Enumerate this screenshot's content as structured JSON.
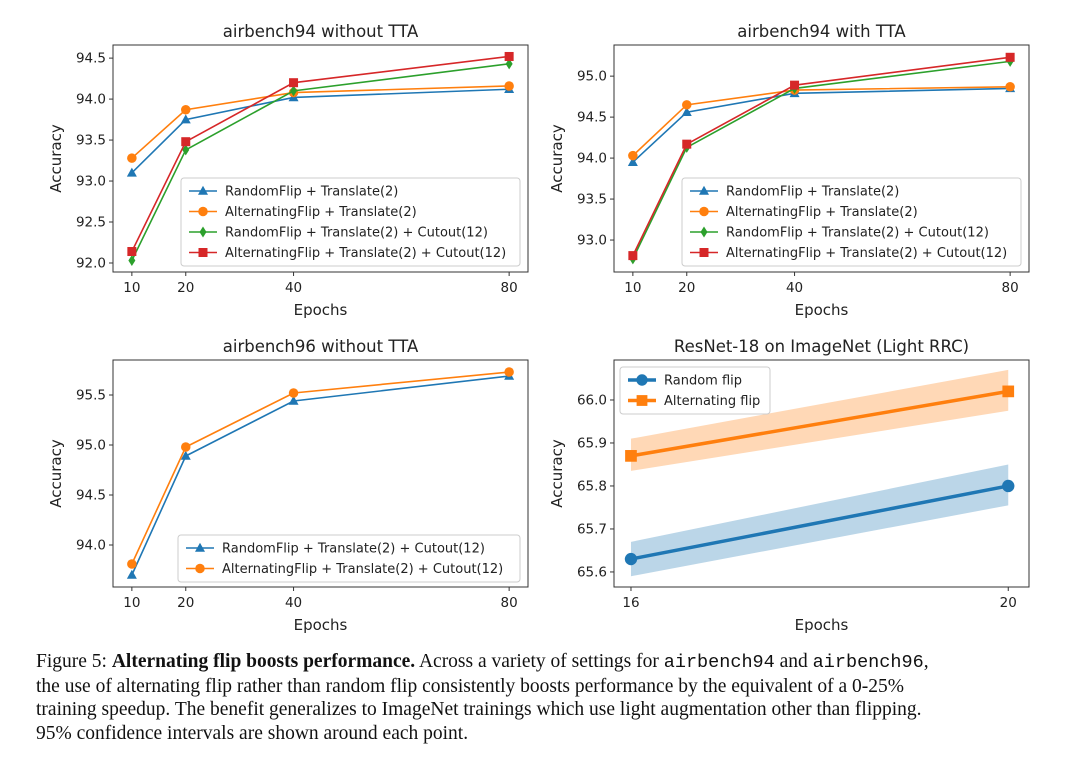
{
  "chart_data": [
    {
      "type": "line",
      "title": "airbench94 without TTA",
      "xlabel": "Epochs",
      "ylabel": "Accuracy",
      "x": [
        10,
        20,
        40,
        80
      ],
      "xticks": [
        "10",
        "20",
        "40",
        "80"
      ],
      "yticks": [
        92.0,
        92.5,
        93.0,
        93.5,
        94.0,
        94.5
      ],
      "ytick_labels": [
        "92.0",
        "92.5",
        "93.0",
        "93.5",
        "94.0",
        "94.5"
      ],
      "xlim": [
        6.5,
        83.5
      ],
      "ylim": [
        91.89,
        94.66
      ],
      "legend_position": "lower-right",
      "series": [
        {
          "name": "RandomFlip + Translate(2)",
          "color": "#1f77b4",
          "marker": "triangle",
          "values": [
            93.1,
            93.75,
            94.02,
            94.12
          ]
        },
        {
          "name": "AlternatingFlip + Translate(2)",
          "color": "#ff7f0e",
          "marker": "circle",
          "values": [
            93.28,
            93.87,
            94.08,
            94.16
          ]
        },
        {
          "name": "RandomFlip + Translate(2) + Cutout(12)",
          "color": "#2ca02c",
          "marker": "diamond",
          "values": [
            92.03,
            93.38,
            94.1,
            94.43
          ]
        },
        {
          "name": "AlternatingFlip + Translate(2) + Cutout(12)",
          "color": "#d62728",
          "marker": "square",
          "values": [
            92.14,
            93.48,
            94.2,
            94.52
          ]
        }
      ]
    },
    {
      "type": "line",
      "title": "airbench94 with TTA",
      "xlabel": "Epochs",
      "ylabel": "Accuracy",
      "x": [
        10,
        20,
        40,
        80
      ],
      "xticks": [
        "10",
        "20",
        "40",
        "80"
      ],
      "yticks": [
        93.0,
        93.5,
        94.0,
        94.5,
        95.0
      ],
      "ytick_labels": [
        "93.0",
        "93.5",
        "94.0",
        "94.5",
        "95.0"
      ],
      "xlim": [
        6.5,
        83.5
      ],
      "ylim": [
        92.61,
        95.38
      ],
      "legend_position": "lower-right",
      "series": [
        {
          "name": "RandomFlip + Translate(2)",
          "color": "#1f77b4",
          "marker": "triangle",
          "values": [
            93.95,
            94.56,
            94.79,
            94.85
          ]
        },
        {
          "name": "AlternatingFlip + Translate(2)",
          "color": "#ff7f0e",
          "marker": "circle",
          "values": [
            94.03,
            94.65,
            94.83,
            94.87
          ]
        },
        {
          "name": "RandomFlip + Translate(2) + Cutout(12)",
          "color": "#2ca02c",
          "marker": "diamond",
          "values": [
            92.77,
            94.13,
            94.85,
            95.18
          ]
        },
        {
          "name": "AlternatingFlip + Translate(2) + Cutout(12)",
          "color": "#d62728",
          "marker": "square",
          "values": [
            92.81,
            94.17,
            94.89,
            95.23
          ]
        }
      ]
    },
    {
      "type": "line",
      "title": "airbench96 without TTA",
      "xlabel": "Epochs",
      "ylabel": "Accuracy",
      "x": [
        10,
        20,
        40,
        80
      ],
      "xticks": [
        "10",
        "20",
        "40",
        "80"
      ],
      "yticks": [
        94.0,
        94.5,
        95.0,
        95.5
      ],
      "ytick_labels": [
        "94.0",
        "94.5",
        "95.0",
        "95.5"
      ],
      "xlim": [
        6.5,
        83.5
      ],
      "ylim": [
        93.58,
        95.85
      ],
      "legend_position": "lower-right",
      "series": [
        {
          "name": "RandomFlip + Translate(2) + Cutout(12)",
          "color": "#1f77b4",
          "marker": "triangle",
          "values": [
            93.7,
            94.89,
            95.44,
            95.69
          ]
        },
        {
          "name": "AlternatingFlip + Translate(2) + Cutout(12)",
          "color": "#ff7f0e",
          "marker": "circle",
          "values": [
            93.81,
            94.98,
            95.52,
            95.73
          ]
        }
      ]
    },
    {
      "type": "line",
      "title": "ResNet-18 on ImageNet (Light RRC)",
      "xlabel": "Epochs",
      "ylabel": "Accuracy",
      "x": [
        16,
        20
      ],
      "xticks": [
        "16",
        "20"
      ],
      "yticks": [
        65.6,
        65.7,
        65.8,
        65.9,
        66.0
      ],
      "ytick_labels": [
        "65.6",
        "65.7",
        "65.8",
        "65.9",
        "66.0"
      ],
      "xlim": [
        15.82,
        20.22
      ],
      "ylim": [
        65.565,
        66.093
      ],
      "legend_position": "upper-left",
      "series": [
        {
          "name": "Random flip",
          "color": "#1f77b4",
          "marker": "circle",
          "values": [
            65.63,
            65.8
          ],
          "ci_lower": [
            65.59,
            65.755
          ],
          "ci_upper": [
            65.67,
            65.85
          ]
        },
        {
          "name": "Alternating flip",
          "color": "#ff7f0e",
          "marker": "square",
          "values": [
            65.87,
            66.02
          ],
          "ci_lower": [
            65.835,
            65.975
          ],
          "ci_upper": [
            65.91,
            66.07
          ]
        }
      ]
    }
  ],
  "caption": {
    "label": "Figure 5:",
    "bold": "Alternating flip boosts performance.",
    "part1": " Across a variety of settings for ",
    "code1": "airbench94",
    "part2": " and ",
    "code2": "airbench96",
    "part3": ",",
    "line2": "the use of alternating flip rather than random flip consistently boosts performance by the equivalent of a 0-25%",
    "line3": "training speedup. The benefit generalizes to ImageNet trainings which use light augmentation other than flipping.",
    "line4": "95% confidence intervals are shown around each point."
  }
}
